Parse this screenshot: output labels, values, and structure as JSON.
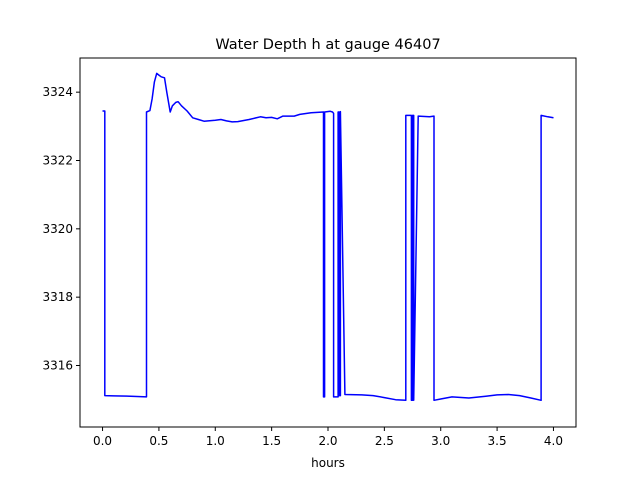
{
  "chart_data": {
    "type": "line",
    "title": "Water Depth h at gauge 46407",
    "xlabel": "hours",
    "ylabel": "",
    "xlim": [
      -0.2,
      4.2
    ],
    "ylim": [
      3314.2,
      3325.0
    ],
    "xticks": [
      0.0,
      0.5,
      1.0,
      1.5,
      2.0,
      2.5,
      3.0,
      3.5,
      4.0
    ],
    "xtick_labels": [
      "0.0",
      "0.5",
      "1.0",
      "1.5",
      "2.0",
      "2.5",
      "3.0",
      "3.5",
      "4.0"
    ],
    "yticks": [
      3316,
      3318,
      3320,
      3322,
      3324
    ],
    "ytick_labels": [
      "3316",
      "3318",
      "3320",
      "3322",
      "3324"
    ],
    "grid": false,
    "series": [
      {
        "name": "",
        "color": "#0000ff",
        "x": [
          0.0,
          0.02,
          0.02,
          0.1,
          0.25,
          0.39,
          0.39,
          0.42,
          0.44,
          0.46,
          0.48,
          0.5,
          0.52,
          0.55,
          0.57,
          0.6,
          0.62,
          0.65,
          0.67,
          0.7,
          0.75,
          0.8,
          0.85,
          0.9,
          1.0,
          1.05,
          1.1,
          1.15,
          1.2,
          1.3,
          1.4,
          1.45,
          1.5,
          1.55,
          1.6,
          1.7,
          1.75,
          1.85,
          1.96,
          1.96,
          1.97,
          1.97,
          2.02,
          2.04,
          2.05,
          2.05,
          2.09,
          2.09,
          2.1,
          2.1,
          2.11,
          2.11,
          2.15,
          2.3,
          2.4,
          2.5,
          2.6,
          2.69,
          2.69,
          2.74,
          2.74,
          2.75,
          2.75,
          2.76,
          2.76,
          2.8,
          2.9,
          2.94,
          2.94,
          3.0,
          3.1,
          3.25,
          3.4,
          3.5,
          3.6,
          3.7,
          3.8,
          3.89,
          3.89,
          3.95,
          4.0
        ],
        "y": [
          3323.45,
          3323.45,
          3315.12,
          3315.11,
          3315.1,
          3315.08,
          3323.42,
          3323.46,
          3323.8,
          3324.3,
          3324.55,
          3324.5,
          3324.45,
          3324.42,
          3324.0,
          3323.42,
          3323.6,
          3323.7,
          3323.72,
          3323.6,
          3323.45,
          3323.25,
          3323.2,
          3323.15,
          3323.18,
          3323.2,
          3323.16,
          3323.13,
          3323.14,
          3323.2,
          3323.28,
          3323.25,
          3323.26,
          3323.22,
          3323.3,
          3323.3,
          3323.35,
          3323.4,
          3323.42,
          3315.08,
          3315.08,
          3323.42,
          3323.44,
          3323.42,
          3323.38,
          3315.08,
          3315.08,
          3323.42,
          3323.42,
          3315.12,
          3315.12,
          3323.43,
          3315.15,
          3315.14,
          3315.12,
          3315.06,
          3315.0,
          3314.98,
          3323.32,
          3323.32,
          3314.98,
          3314.98,
          3323.32,
          3323.32,
          3314.98,
          3323.3,
          3323.28,
          3323.3,
          3314.98,
          3315.02,
          3315.08,
          3315.05,
          3315.1,
          3315.14,
          3315.15,
          3315.12,
          3315.05,
          3314.98,
          3323.32,
          3323.28,
          3323.25
        ]
      }
    ]
  }
}
